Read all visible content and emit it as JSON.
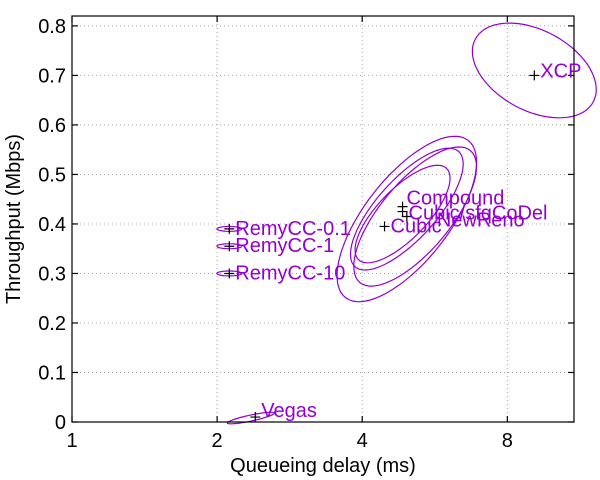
{
  "chart_data": {
    "type": "scatter",
    "xlabel": "Queueing delay (ms)",
    "ylabel": "Throughput (Mbps)",
    "x_scale": "log2",
    "xlim": [
      1,
      11
    ],
    "ylim": [
      0,
      0.82
    ],
    "x_ticks": [
      {
        "value": 1,
        "label": "1"
      },
      {
        "value": 2,
        "label": "2"
      },
      {
        "value": 4,
        "label": "4"
      },
      {
        "value": 8,
        "label": "8"
      }
    ],
    "y_ticks": [
      {
        "value": 0,
        "label": "0"
      },
      {
        "value": 0.1,
        "label": "0.1"
      },
      {
        "value": 0.2,
        "label": "0.2"
      },
      {
        "value": 0.3,
        "label": "0.3"
      },
      {
        "value": 0.4,
        "label": "0.4"
      },
      {
        "value": 0.5,
        "label": "0.5"
      },
      {
        "value": 0.6,
        "label": "0.6"
      },
      {
        "value": 0.7,
        "label": "0.7"
      },
      {
        "value": 0.8,
        "label": "0.8"
      }
    ],
    "grid": true,
    "label_color": "#9400d3",
    "ellipse_color": "#9400d3",
    "points": [
      {
        "name": "RemyCC-0.1",
        "x": 2.12,
        "y": 0.39
      },
      {
        "name": "RemyCC-1",
        "x": 2.12,
        "y": 0.355
      },
      {
        "name": "RemyCC-10",
        "x": 2.12,
        "y": 0.3
      },
      {
        "name": "Vegas",
        "x": 2.4,
        "y": 0.01
      },
      {
        "name": "Compound",
        "x": 4.85,
        "y": 0.435
      },
      {
        "name": "NewReno",
        "x": 4.95,
        "y": 0.415
      },
      {
        "name": "Cubic",
        "x": 4.45,
        "y": 0.395
      },
      {
        "name": "Cubic/sfqCoDel",
        "x": 4.85,
        "y": 0.425
      },
      {
        "name": "XCP",
        "x": 9.1,
        "y": 0.7
      }
    ],
    "ellipses": [
      {
        "of": "XCP",
        "cx": 9.1,
        "cy": 0.71,
        "rx": 1.9,
        "ry": 0.135,
        "angle_deg": 62
      },
      {
        "of": "Cubic",
        "cx": 4.95,
        "cy": 0.41,
        "rx": 3.0,
        "ry": 0.085,
        "angle_deg": 52
      },
      {
        "of": "NewReno",
        "cx": 5.15,
        "cy": 0.415,
        "rx": 2.6,
        "ry": 0.07,
        "angle_deg": 50
      },
      {
        "of": "Compound",
        "cx": 4.95,
        "cy": 0.43,
        "rx": 2.2,
        "ry": 0.06,
        "angle_deg": 48
      },
      {
        "of": "Cubic/sfqCoDel",
        "cx": 4.85,
        "cy": 0.42,
        "rx": 1.7,
        "ry": 0.05,
        "angle_deg": 46
      },
      {
        "of": "RemyCC-0.1",
        "cx": 2.12,
        "cy": 0.39,
        "rx": 0.02,
        "ry": 0.025,
        "angle_deg": 90
      },
      {
        "of": "RemyCC-1",
        "cx": 2.12,
        "cy": 0.355,
        "rx": 0.02,
        "ry": 0.025,
        "angle_deg": 90
      },
      {
        "of": "RemyCC-10",
        "cx": 2.12,
        "cy": 0.3,
        "rx": 0.02,
        "ry": 0.025,
        "angle_deg": 90
      },
      {
        "of": "Vegas",
        "cx": 2.35,
        "cy": 0.008,
        "rx": 0.28,
        "ry": 0.006,
        "angle_deg": 12
      }
    ]
  }
}
